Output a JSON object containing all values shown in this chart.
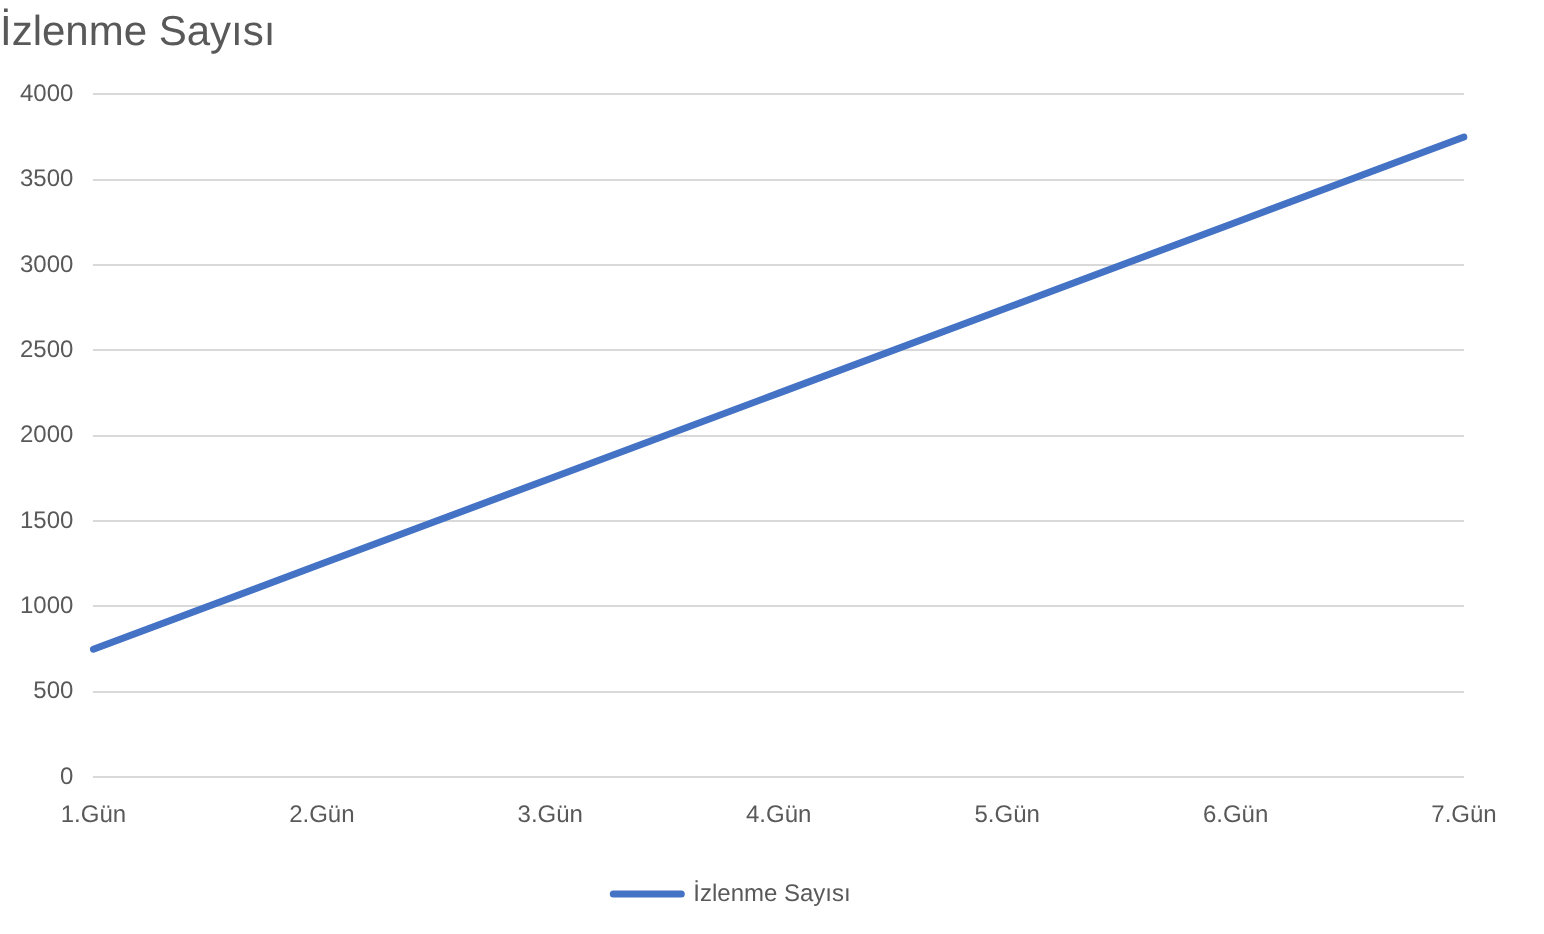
{
  "chart_data": {
    "type": "line",
    "title": "İzlenme Sayısı",
    "categories": [
      "1.Gün",
      "2.Gün",
      "3.Gün",
      "4.Gün",
      "5.Gün",
      "6.Gün",
      "7.Gün"
    ],
    "series": [
      {
        "name": "İzlenme Sayısı",
        "color": "#4472c4",
        "values": [
          750,
          1250,
          1750,
          2250,
          2750,
          3250,
          3750
        ]
      }
    ],
    "ylim": [
      0,
      4000
    ],
    "yticks": [
      0,
      500,
      1000,
      1500,
      2000,
      2500,
      3000,
      3500,
      4000
    ],
    "grid": "y",
    "legend": "bottom",
    "marker": "none",
    "line_style": "solid"
  }
}
